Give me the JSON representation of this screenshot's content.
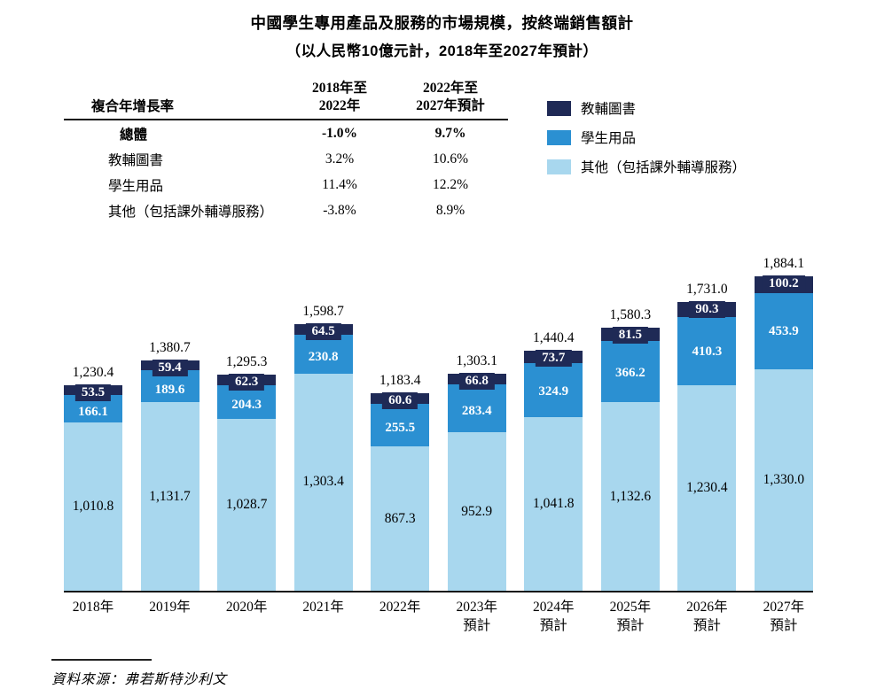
{
  "page": {
    "title": "中國學生專用產品及服務的市場規模，按終端銷售額計",
    "subtitle": "（以人民幣10億元計，2018年至2027年預計）",
    "source": "資料來源：弗若斯特沙利文"
  },
  "colors": {
    "books_navy": "#1F2A56",
    "supplies_blue": "#2B90D2",
    "other_lightblue": "#A8D7EE",
    "axis": "#151515"
  },
  "cagr_table": {
    "header": {
      "label": "複合年增長率",
      "col1": [
        "2018年至",
        "2022年"
      ],
      "col2": [
        "2022年至",
        "2027年預計"
      ]
    },
    "rows": [
      {
        "label": "總體",
        "p1": "-1.0%",
        "p2": "9.7%"
      },
      {
        "label": "教輔圖書",
        "p1": "3.2%",
        "p2": "10.6%"
      },
      {
        "label": "學生用品",
        "p1": "11.4%",
        "p2": "12.2%"
      },
      {
        "label": "其他（包括課外輔導服務）",
        "p1": "-3.8%",
        "p2": "8.9%"
      }
    ]
  },
  "legend": {
    "position": "top-right",
    "items": [
      {
        "label": "教輔圖書",
        "color": "#1F2A56"
      },
      {
        "label": "學生用品",
        "color": "#2B90D2"
      },
      {
        "label": "其他（包括課外輔導服務）",
        "color": "#A8D7EE"
      }
    ]
  },
  "chart_data": {
    "type": "bar",
    "stacked": true,
    "title": "中國學生專用產品及服務的市場規模，按終端銷售額計",
    "subtitle": "（以人民幣10億元計，2018年至2027年預計）",
    "unit": "人民幣10億元",
    "xlabel": "",
    "ylabel": "",
    "grid": false,
    "legend_position": "top-right",
    "ylim": [
      0,
      1884.1
    ],
    "categories": [
      {
        "label": "2018年",
        "sub": ""
      },
      {
        "label": "2019年",
        "sub": ""
      },
      {
        "label": "2020年",
        "sub": ""
      },
      {
        "label": "2021年",
        "sub": ""
      },
      {
        "label": "2022年",
        "sub": ""
      },
      {
        "label": "2023年",
        "sub": "預計"
      },
      {
        "label": "2024年",
        "sub": "預計"
      },
      {
        "label": "2025年",
        "sub": "預計"
      },
      {
        "label": "2026年",
        "sub": "預計"
      },
      {
        "label": "2027年",
        "sub": "預計"
      }
    ],
    "series": [
      {
        "name": "教輔圖書",
        "color": "#1F2A56",
        "values": [
          53.5,
          59.4,
          62.3,
          64.5,
          60.6,
          66.8,
          73.7,
          81.5,
          90.3,
          100.2
        ]
      },
      {
        "name": "學生用品",
        "color": "#2B90D2",
        "values": [
          166.1,
          189.6,
          204.3,
          230.8,
          255.5,
          283.4,
          324.9,
          366.2,
          410.3,
          453.9
        ]
      },
      {
        "name": "其他（包括課外輔導服務）",
        "color": "#A8D7EE",
        "values": [
          1010.8,
          1131.7,
          1028.7,
          1303.4,
          867.3,
          952.9,
          1041.8,
          1132.6,
          1230.4,
          1330.0
        ]
      }
    ],
    "totals": [
      1230.4,
      1380.7,
      1295.3,
      1598.7,
      1183.4,
      1303.1,
      1440.4,
      1580.3,
      1731.0,
      1884.1
    ]
  }
}
